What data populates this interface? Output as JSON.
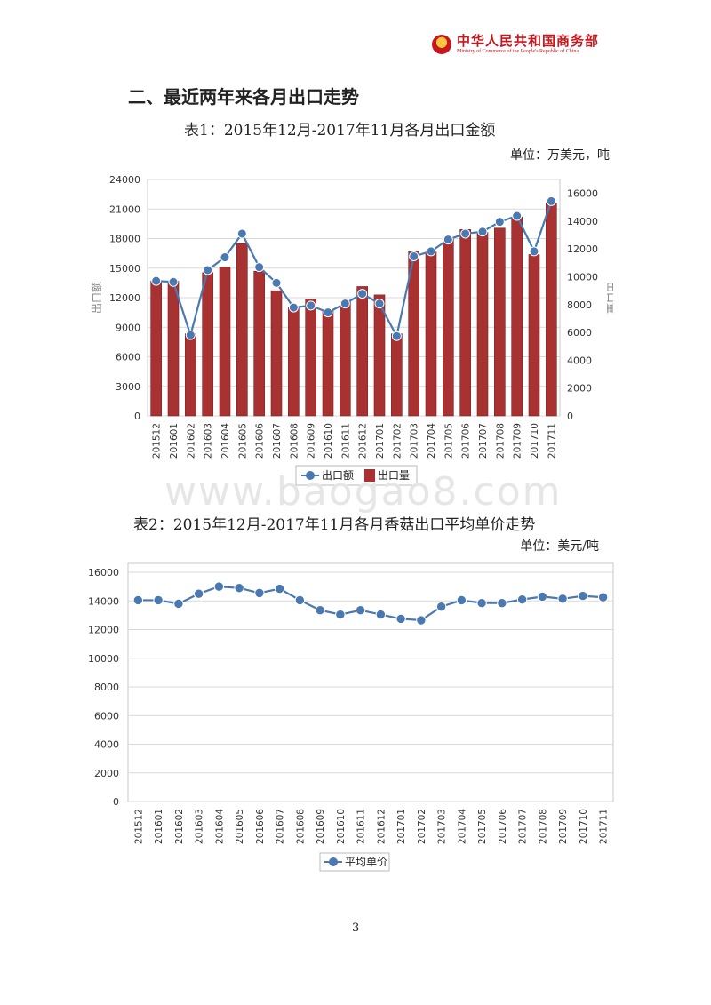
{
  "header": {
    "org_name_cn": "中华人民共和国商务部",
    "org_name_en": "Ministry of Commerce of the People's Republic of China"
  },
  "section_title": "二、最近两年来各月出口走势",
  "table1": {
    "caption": "表1：2015年12月-2017年11月各月出口金额",
    "unit": "单位：万美元，吨"
  },
  "table2": {
    "caption": "表2：2015年12月-2017年11月各月香菇出口平均单价走势",
    "unit": "单位：美元/吨"
  },
  "watermark": "www.baogao8.com",
  "page_number": "3",
  "colors": {
    "line": "#4a78b0",
    "bar": "#a83232",
    "grid": "#d9d9d9",
    "brand": "#c8161d"
  },
  "chart_data": [
    {
      "type": "bar",
      "categories": [
        "201512",
        "201601",
        "201602",
        "201603",
        "201604",
        "201605",
        "201606",
        "201607",
        "201608",
        "201609",
        "201610",
        "201611",
        "201612",
        "201701",
        "201702",
        "201703",
        "201704",
        "201705",
        "201706",
        "201707",
        "201708",
        "201709",
        "201710",
        "201711"
      ],
      "series": [
        {
          "name": "出口额",
          "type": "line",
          "axis": "left",
          "values": [
            13700,
            13600,
            8200,
            14800,
            16100,
            18500,
            15100,
            13500,
            11000,
            11200,
            10500,
            11400,
            12400,
            11400,
            8100,
            16200,
            16700,
            17900,
            18500,
            18700,
            19700,
            20300,
            16700,
            21800
          ]
        },
        {
          "name": "出口量",
          "type": "bar",
          "axis": "right",
          "values": [
            9700,
            9700,
            5900,
            10300,
            10700,
            12400,
            10400,
            9000,
            7800,
            8400,
            7600,
            8200,
            9300,
            8700,
            5900,
            11800,
            11800,
            12700,
            13400,
            13200,
            13500,
            14300,
            11600,
            15300
          ]
        }
      ],
      "ylabel": "出口额",
      "y2label": "出口量",
      "ylim": [
        0,
        24000
      ],
      "yticks": [
        0,
        3000,
        6000,
        9000,
        12000,
        15000,
        18000,
        21000,
        24000
      ],
      "y2lim": [
        0,
        17000
      ],
      "y2ticks": [
        0,
        2000,
        4000,
        6000,
        8000,
        10000,
        12000,
        14000,
        16000
      ],
      "grid": true,
      "legend": "bottom"
    },
    {
      "type": "line",
      "categories": [
        "201512",
        "201601",
        "201602",
        "201603",
        "201604",
        "201605",
        "201606",
        "201607",
        "201608",
        "201609",
        "201610",
        "201611",
        "201612",
        "201701",
        "201702",
        "201703",
        "201704",
        "201705",
        "201706",
        "201707",
        "201708",
        "201709",
        "201710",
        "201711"
      ],
      "series": [
        {
          "name": "平均单价",
          "values": [
            14050,
            14050,
            13800,
            14500,
            15000,
            14900,
            14550,
            14850,
            14050,
            13350,
            13050,
            13350,
            13050,
            12750,
            12650,
            13600,
            14050,
            13850,
            13850,
            14100,
            14300,
            14150,
            14350,
            14250
          ]
        }
      ],
      "ylim": [
        0,
        16000
      ],
      "yticks": [
        0,
        2000,
        4000,
        6000,
        8000,
        10000,
        12000,
        14000,
        16000
      ],
      "grid": true,
      "legend": "bottom"
    }
  ]
}
